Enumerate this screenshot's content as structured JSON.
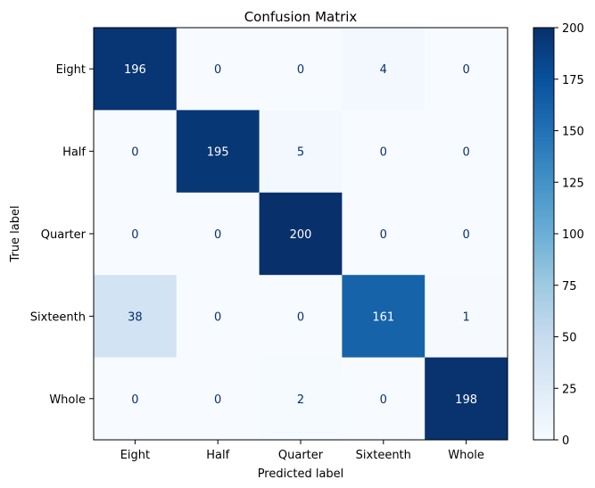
{
  "chart_data": {
    "type": "heatmap",
    "title": "Confusion Matrix",
    "xlabel": "Predicted label",
    "ylabel": "True label",
    "x_categories": [
      "Eight",
      "Half",
      "Quarter",
      "Sixteenth",
      "Whole"
    ],
    "y_categories": [
      "Eight",
      "Half",
      "Quarter",
      "Sixteenth",
      "Whole"
    ],
    "values": [
      [
        196,
        0,
        0,
        4,
        0
      ],
      [
        0,
        195,
        5,
        0,
        0
      ],
      [
        0,
        0,
        200,
        0,
        0
      ],
      [
        38,
        0,
        0,
        161,
        1
      ],
      [
        0,
        0,
        2,
        0,
        198
      ]
    ],
    "colormap": "Blues",
    "color_range": [
      0,
      200
    ],
    "colorbar_ticks": [
      0,
      25,
      50,
      75,
      100,
      125,
      150,
      175,
      200
    ],
    "colors": {
      "low": "#f7fbff",
      "high": "#08306b",
      "text_on_dark": "#ffffff",
      "text_on_light": "#08306b"
    }
  }
}
